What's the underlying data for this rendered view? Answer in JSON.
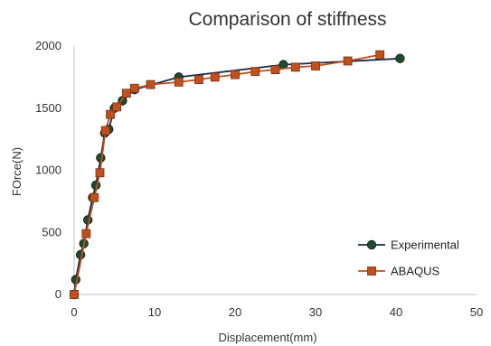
{
  "chart_data": {
    "type": "line",
    "title": "Comparison of stiffness",
    "xlabel": "Displacement(mm)",
    "ylabel": "FOrce(N)",
    "xlim": [
      0,
      50
    ],
    "ylim": [
      0,
      2000
    ],
    "xticks": [
      0,
      10,
      20,
      30,
      40,
      50
    ],
    "yticks": [
      0,
      500,
      1000,
      1500,
      2000
    ],
    "grid": {
      "x": false,
      "y": false
    },
    "legend": "bottom-right",
    "series": [
      {
        "name": "Experimental",
        "color": "#1f4a2e",
        "line_color": "#1a2a4a",
        "marker": "circle",
        "x": [
          0,
          0.2,
          0.8,
          1.2,
          1.7,
          2.3,
          2.7,
          3.3,
          3.8,
          4.3,
          5.0,
          6.0,
          7.5,
          13.0,
          26.0,
          40.5
        ],
        "y": [
          0,
          120,
          320,
          410,
          600,
          780,
          880,
          1100,
          1300,
          1330,
          1500,
          1560,
          1650,
          1750,
          1850,
          1900
        ]
      },
      {
        "name": "ABAQUS",
        "color": "#c0501f",
        "line_color": "#c0501f",
        "marker": "square",
        "x": [
          0,
          1.5,
          2.5,
          3.2,
          3.9,
          4.5,
          5.3,
          6.5,
          7.5,
          9.5,
          13.0,
          15.5,
          17.5,
          20.0,
          22.5,
          25.0,
          27.5,
          30.0,
          34.0,
          38.0
        ],
        "y": [
          0,
          490,
          780,
          980,
          1320,
          1450,
          1510,
          1620,
          1660,
          1690,
          1710,
          1730,
          1750,
          1770,
          1795,
          1810,
          1830,
          1840,
          1880,
          1930
        ]
      }
    ]
  }
}
